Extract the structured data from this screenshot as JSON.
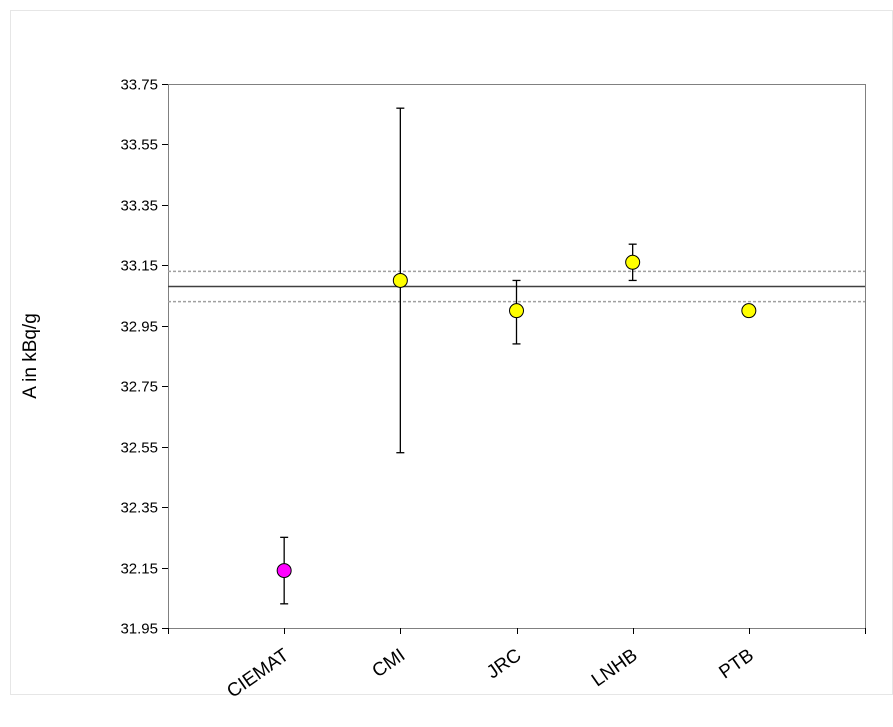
{
  "chart_data": {
    "type": "scatter",
    "title": "",
    "xlabel": "",
    "ylabel": "A in kBq/g",
    "categories": [
      "CIEMAT",
      "CMI",
      "JRC",
      "LNHB",
      "PTB"
    ],
    "points": [
      {
        "category": "CIEMAT",
        "value": 32.14,
        "err_low": 32.03,
        "err_high": 32.25,
        "color": "#ff00ff"
      },
      {
        "category": "CMI",
        "value": 33.1,
        "err_low": 32.53,
        "err_high": 33.67,
        "color": "#ffff00"
      },
      {
        "category": "JRC",
        "value": 33.0,
        "err_low": 32.89,
        "err_high": 33.1,
        "color": "#ffff00"
      },
      {
        "category": "LNHB",
        "value": 33.16,
        "err_low": 33.1,
        "err_high": 33.22,
        "color": "#ffff00"
      },
      {
        "category": "PTB",
        "value": 33.0,
        "err_low": null,
        "err_high": null,
        "color": "#ffff00"
      }
    ],
    "reference_value": 33.08,
    "reference_band": [
      33.03,
      33.13
    ],
    "ylim": [
      31.95,
      33.75
    ],
    "yticks": [
      "31.95",
      "32.15",
      "32.35",
      "32.55",
      "32.75",
      "32.95",
      "33.15",
      "33.35",
      "33.55",
      "33.75"
    ],
    "grid": false,
    "legend": "none",
    "colors": {
      "frame": "#808080",
      "reference_line": "#404040",
      "band_line": "#a0a0a0",
      "error_bar": "#000000"
    }
  }
}
